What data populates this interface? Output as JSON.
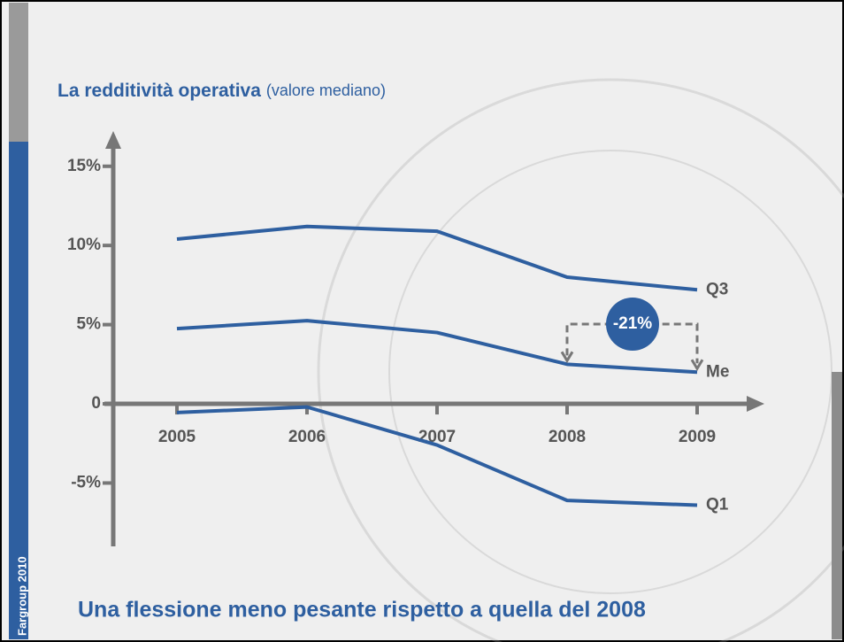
{
  "chart_data": {
    "type": "line",
    "title": "La redditività operativa",
    "subtitle": "(valore mediano)",
    "footer": "Una flessione meno pesante rispetto a quella del 2008",
    "side_label": "Fargroup 2010",
    "categories": [
      "2005",
      "2006",
      "2007",
      "2008",
      "2009"
    ],
    "series": [
      {
        "name": "Q3",
        "color": "#2e5fa0",
        "values": [
          10.4,
          11.2,
          10.9,
          8.0,
          7.2
        ]
      },
      {
        "name": "Me",
        "color": "#2e5fa0",
        "values": [
          4.75,
          5.25,
          4.5,
          2.5,
          2.0
        ]
      },
      {
        "name": "Q1",
        "color": "#2e5fa0",
        "values": [
          -0.55,
          -0.2,
          -2.6,
          -6.1,
          -6.4
        ]
      }
    ],
    "ylim": [
      -9,
      17
    ],
    "yticks": [
      {
        "value": -5,
        "label": "-5%"
      },
      0,
      {
        "value": 5,
        "label": "5%"
      },
      {
        "value": 10,
        "label": "10%"
      },
      {
        "value": 15,
        "label": "15%"
      }
    ],
    "annotations": [
      "-21%"
    ]
  }
}
